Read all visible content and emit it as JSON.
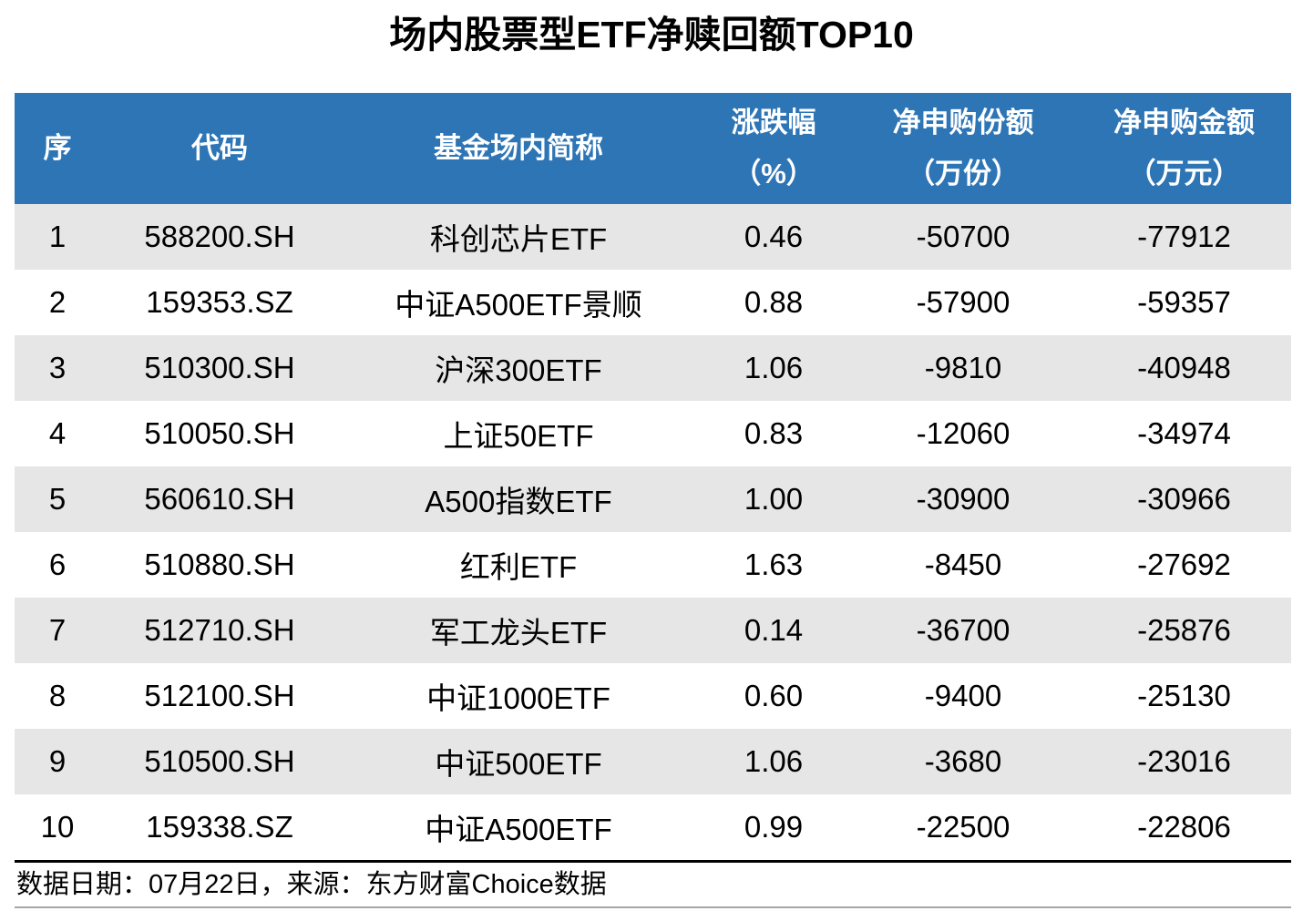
{
  "title": "场内股票型ETF净赎回额TOP10",
  "header": {
    "col_seq": "序",
    "col_code": "代码",
    "col_name": "基金场内简称",
    "col_change_l1": "涨跌幅",
    "col_change_l2": "（%）",
    "col_shares_l1": "净申购份额",
    "col_shares_l2": "（万份）",
    "col_amount_l1": "净申购金额",
    "col_amount_l2": "（万元）"
  },
  "footer": {
    "note": "数据日期：07月22日，来源：东方财富Choice数据"
  },
  "colors": {
    "header_bg": "#2e75b6",
    "header_text": "#ffffff",
    "stripe_bg": "#e6e6e6",
    "body_text": "#000000",
    "footer_rule_top": "#000000",
    "footer_rule_bottom": "#a6a6a6"
  },
  "chart_data": {
    "type": "table",
    "title": "场内股票型ETF净赎回额TOP10",
    "columns": [
      "序",
      "代码",
      "基金场内简称",
      "涨跌幅(%)",
      "净申购份额(万份)",
      "净申购金额(万元)"
    ],
    "rows": [
      [
        "1",
        "588200.SH",
        "科创芯片ETF",
        "0.46",
        "-50700",
        "-77912"
      ],
      [
        "2",
        "159353.SZ",
        "中证A500ETF景顺",
        "0.88",
        "-57900",
        "-59357"
      ],
      [
        "3",
        "510300.SH",
        "沪深300ETF",
        "1.06",
        "-9810",
        "-40948"
      ],
      [
        "4",
        "510050.SH",
        "上证50ETF",
        "0.83",
        "-12060",
        "-34974"
      ],
      [
        "5",
        "560610.SH",
        "A500指数ETF",
        "1.00",
        "-30900",
        "-30966"
      ],
      [
        "6",
        "510880.SH",
        "红利ETF",
        "1.63",
        "-8450",
        "-27692"
      ],
      [
        "7",
        "512710.SH",
        "军工龙头ETF",
        "0.14",
        "-36700",
        "-25876"
      ],
      [
        "8",
        "512100.SH",
        "中证1000ETF",
        "0.60",
        "-9400",
        "-25130"
      ],
      [
        "9",
        "510500.SH",
        "中证500ETF",
        "1.06",
        "-3680",
        "-23016"
      ],
      [
        "10",
        "159338.SZ",
        "中证A500ETF",
        "0.99",
        "-22500",
        "-22806"
      ]
    ],
    "source_note": "数据日期：07月22日，来源：东方财富Choice数据"
  }
}
